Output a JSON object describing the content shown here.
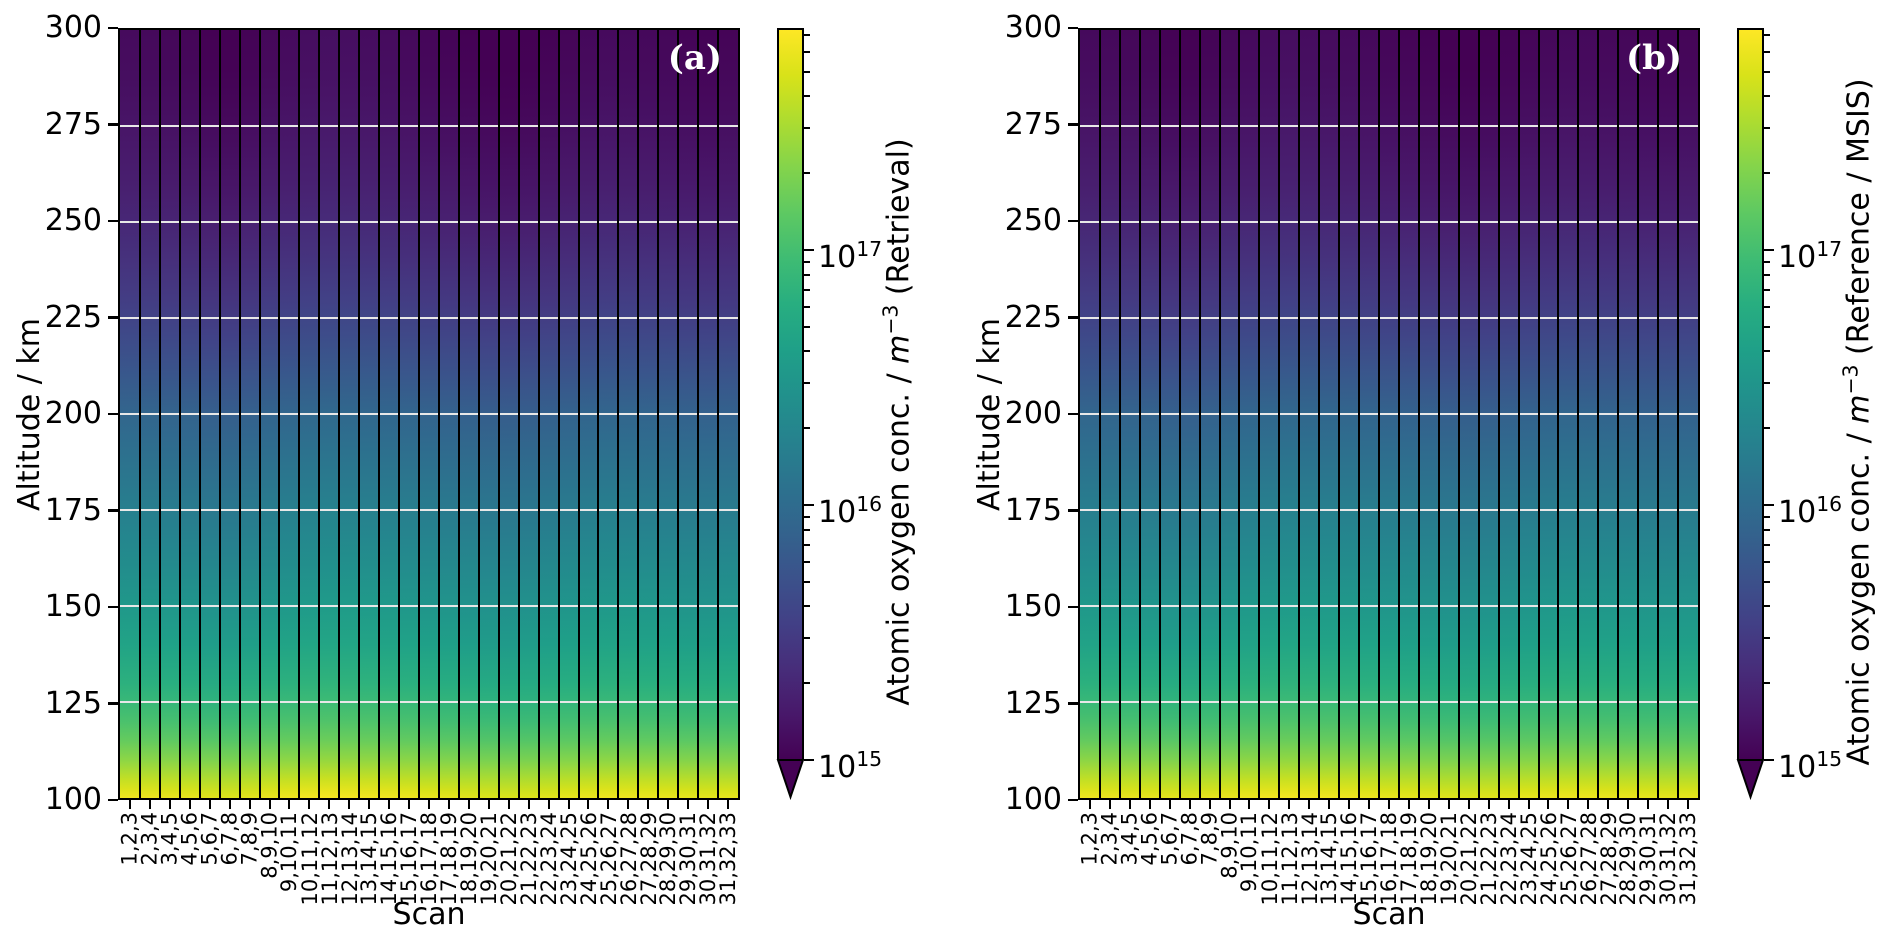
{
  "figure": {
    "background": "#ffffff"
  },
  "panels": [
    {
      "tag": "(a)",
      "ylabel": "Altitude / km",
      "xlabel": "Scan",
      "colorbar": {
        "label_prefix": "Atomic oxygen conc. / ",
        "unit": "m",
        "unit_exp": "−3",
        "label_suffix": " (Retrieval)"
      }
    },
    {
      "tag": "(b)",
      "ylabel": "Altitude / km",
      "xlabel": "Scan",
      "colorbar": {
        "label_prefix": "Atomic oxygen conc. / ",
        "unit": "m",
        "unit_exp": "−3",
        "label_suffix": " (Reference / MSIS)"
      }
    }
  ],
  "axes": {
    "y_tick_labels": [
      "300",
      "275",
      "250",
      "225",
      "200",
      "175",
      "150",
      "125",
      "100"
    ],
    "y_tick_values": [
      300,
      275,
      250,
      225,
      200,
      175,
      150,
      125,
      100
    ],
    "gridline_altitudes": [
      275,
      250,
      225,
      200,
      175,
      150,
      125
    ],
    "x_tick_labels": [
      "1,2,3",
      "2,3,4",
      "3,4,5",
      "4,5,6",
      "5,6,7",
      "6,7,8",
      "7,8,9",
      "8,9,10",
      "9,10,11",
      "10,11,12",
      "11,12,13",
      "12,13,14",
      "13,14,15",
      "14,15,16",
      "15,16,17",
      "16,17,18",
      "17,18,19",
      "18,19,20",
      "19,20,21",
      "20,21,22",
      "21,22,23",
      "22,23,24",
      "23,24,25",
      "24,25,26",
      "25,26,27",
      "26,27,28",
      "27,28,29",
      "28,29,30",
      "29,30,31",
      "30,31,32",
      "31,32,33"
    ]
  },
  "colorbar": {
    "tick_labels": [
      {
        "base": "10",
        "exp": "17",
        "value": 1e+17
      },
      {
        "base": "10",
        "exp": "16",
        "value": 1e+16
      },
      {
        "base": "10",
        "exp": "15",
        "value": 1000000000000000.0
      }
    ],
    "scale": "log",
    "vmin": 1000000000000000.0,
    "vmax": 7.4e+17,
    "extend": "min"
  },
  "chart_data": {
    "type": "heatmap",
    "title": "",
    "x": {
      "label": "Scan",
      "categories": [
        "1,2,3",
        "2,3,4",
        "3,4,5",
        "4,5,6",
        "5,6,7",
        "6,7,8",
        "7,8,9",
        "8,9,10",
        "9,10,11",
        "10,11,12",
        "11,12,13",
        "12,13,14",
        "13,14,15",
        "14,15,16",
        "15,16,17",
        "16,17,18",
        "17,18,19",
        "18,19,20",
        "19,20,21",
        "20,21,22",
        "21,22,23",
        "22,23,24",
        "23,24,25",
        "24,25,26",
        "25,26,27",
        "26,27,28",
        "27,28,29",
        "28,29,30",
        "29,30,31",
        "30,31,32",
        "31,32,33"
      ]
    },
    "y": {
      "label": "Altitude / km",
      "min": 100,
      "max": 300,
      "ticks": [
        100,
        125,
        150,
        175,
        200,
        225,
        250,
        275,
        300
      ],
      "gridlines": [
        125,
        150,
        175,
        200,
        225,
        250,
        275
      ],
      "gridline_color": "#e8e8e8"
    },
    "color_scale": {
      "name": "viridis",
      "scale": "log",
      "vmin": 1000000000000000.0,
      "vmax": 7.4e+17,
      "extend": "min",
      "colorbar_tick_values": [
        1e+17,
        1e+16,
        1000000000000000.0
      ],
      "cell_edge_color": "#000000",
      "stops": [
        [
          0.0,
          "#440154"
        ],
        [
          0.0625,
          "#48186a"
        ],
        [
          0.125,
          "#472d7a"
        ],
        [
          0.1875,
          "#424086"
        ],
        [
          0.25,
          "#3b528b"
        ],
        [
          0.3125,
          "#33638d"
        ],
        [
          0.375,
          "#2c728e"
        ],
        [
          0.4375,
          "#26828e"
        ],
        [
          0.5,
          "#21918c"
        ],
        [
          0.5625,
          "#1fa088"
        ],
        [
          0.625,
          "#28ae80"
        ],
        [
          0.6875,
          "#3fbc73"
        ],
        [
          0.75,
          "#5ec962"
        ],
        [
          0.8125,
          "#84d44b"
        ],
        [
          0.875,
          "#addc30"
        ],
        [
          0.9375,
          "#d8e219"
        ],
        [
          1.0,
          "#fde725"
        ]
      ]
    },
    "profile_estimate": {
      "comment_visible_in_pixels_only": "vertical concentration profile shared by all 31 scan columns, read from colors vs colorbar",
      "altitude_km": [
        100,
        102,
        105,
        110,
        115,
        120,
        125,
        130,
        140,
        150,
        160,
        170,
        175,
        180,
        190,
        200,
        210,
        220,
        230,
        240,
        250,
        260,
        270,
        280,
        290,
        300
      ],
      "t_colormap": [
        0.97,
        0.94,
        0.895,
        0.815,
        0.75,
        0.7,
        0.66,
        0.625,
        0.565,
        0.52,
        0.475,
        0.435,
        0.415,
        0.395,
        0.355,
        0.315,
        0.262,
        0.212,
        0.168,
        0.13,
        0.098,
        0.072,
        0.052,
        0.035,
        0.022,
        0.015
      ],
      "conc_m3": [
        6.1e+17,
        5e+17,
        3.7e+17,
        2.2e+17,
        1.4e+17,
        1e+17,
        7.8e+16,
        6.2e+16,
        4.2e+16,
        3.1e+16,
        2.3e+16,
        1.8e+16,
        1.55e+16,
        1.36e+16,
        1.05e+16,
        8000000000000000.0,
        5600000000000000.0,
        4100000000000000.0,
        3000000000000000.0,
        2400000000000000.0,
        1900000000000000.0,
        1600000000000000.0,
        1400000000000000.0,
        1260000000000000.0,
        1160000000000000.0,
        1100000000000000.0
      ]
    },
    "panels": [
      {
        "tag": "(a)",
        "quantity": "Atomic oxygen conc. / m^-3 (Retrieval)",
        "column_shade_offsets": [
          0.01,
          0.006,
          0.0,
          -0.004,
          -0.016,
          -0.02,
          -0.01,
          0.002,
          0.01,
          0.018,
          0.022,
          0.02,
          0.016,
          0.012,
          0.006,
          -0.002,
          -0.008,
          -0.014,
          -0.022,
          -0.026,
          -0.02,
          -0.012,
          -0.004,
          0.004,
          0.01,
          0.008,
          0.004,
          0.0,
          -0.006,
          -0.01,
          -0.006
        ]
      },
      {
        "tag": "(b)",
        "quantity": "Atomic oxygen conc. / m^-3 (Reference / MSIS)",
        "column_shade_offsets": [
          0.008,
          0.005,
          0.0,
          -0.003,
          -0.013,
          -0.016,
          -0.008,
          0.002,
          0.008,
          0.014,
          0.018,
          0.016,
          0.013,
          0.01,
          0.005,
          -0.002,
          -0.006,
          -0.011,
          -0.018,
          -0.021,
          -0.016,
          -0.01,
          -0.003,
          0.003,
          0.008,
          0.006,
          0.003,
          0.0,
          -0.005,
          -0.008,
          -0.005
        ]
      }
    ]
  }
}
